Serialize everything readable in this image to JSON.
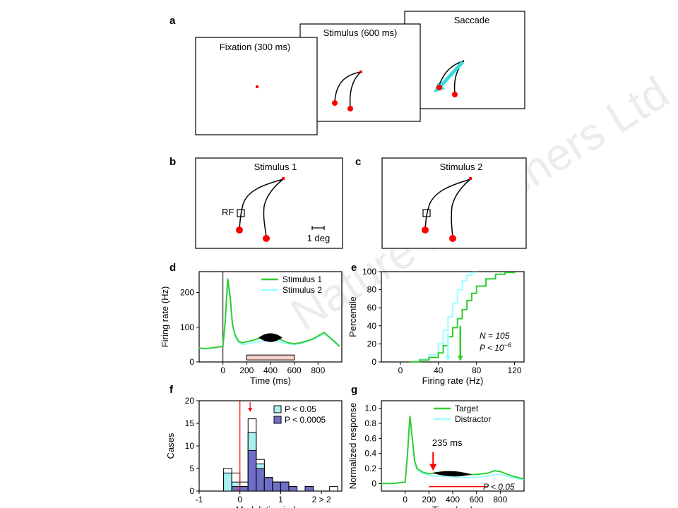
{
  "watermark": "Nature Publishers Ltd",
  "colors": {
    "green": "#33cc33",
    "cyan": "#99ffff",
    "red": "#ff0000",
    "purple": "#6f6fc8",
    "lightcyan": "#aaf0f0",
    "pinkbar": "#f5d0c8"
  },
  "panel_a": {
    "letter": "a",
    "screens": [
      {
        "label": "Fixation (300 ms)"
      },
      {
        "label": "Stimulus (600 ms)"
      },
      {
        "label": "Saccade"
      }
    ]
  },
  "panel_b": {
    "letter": "b",
    "title": "Stimulus 1",
    "rf_label": "RF",
    "scale_label": "1 deg"
  },
  "panel_c": {
    "letter": "c",
    "title": "Stimulus 2"
  },
  "chart_data": [
    {
      "panel": "d",
      "type": "line",
      "xlabel": "Time (ms)",
      "ylabel": "Firing rate (Hz)",
      "xlim": [
        -200,
        1000
      ],
      "ylim": [
        0,
        260
      ],
      "xticks": [
        0,
        200,
        400,
        600,
        800
      ],
      "yticks": [
        0,
        100,
        200
      ],
      "legend": "top-right",
      "series": [
        {
          "name": "Stimulus 1",
          "color": "#33cc33",
          "x": [
            -200,
            -150,
            -100,
            -50,
            0,
            20,
            40,
            60,
            80,
            100,
            130,
            160,
            200,
            250,
            300,
            350,
            400,
            450,
            500,
            550,
            600,
            650,
            700,
            750,
            800,
            850,
            900,
            950,
            980
          ],
          "y": [
            40,
            38,
            40,
            42,
            45,
            120,
            240,
            190,
            110,
            80,
            60,
            55,
            58,
            62,
            68,
            72,
            75,
            70,
            62,
            55,
            52,
            55,
            60,
            65,
            75,
            85,
            70,
            55,
            45
          ]
        },
        {
          "name": "Stimulus 2",
          "color": "#99ffff",
          "x": [
            -200,
            -150,
            -100,
            -50,
            0,
            20,
            40,
            60,
            80,
            100,
            130,
            160,
            200,
            250,
            300,
            350,
            400,
            450,
            500,
            550,
            600,
            650,
            700,
            750,
            800,
            850,
            900,
            950,
            980
          ],
          "y": [
            40,
            38,
            40,
            42,
            45,
            115,
            230,
            180,
            105,
            75,
            58,
            50,
            52,
            55,
            58,
            60,
            62,
            60,
            55,
            52,
            50,
            53,
            58,
            63,
            72,
            82,
            68,
            53,
            44
          ]
        }
      ],
      "analysis_window": [
        200,
        600
      ]
    },
    {
      "panel": "e",
      "type": "line",
      "xlabel": "Firing rate (Hz)",
      "ylabel": "Percentile",
      "xlim": [
        -20,
        130
      ],
      "ylim": [
        0,
        100
      ],
      "xticks": [
        0,
        40,
        80,
        120
      ],
      "yticks": [
        0,
        20,
        40,
        60,
        80,
        100
      ],
      "annotation_n": "N = 105",
      "annotation_p": "P < 10",
      "annotation_p_exp": "−6",
      "series": [
        {
          "name": "Stimulus 1",
          "color": "#33cc33",
          "x": [
            10,
            20,
            30,
            40,
            45,
            50,
            55,
            60,
            65,
            70,
            75,
            80,
            90,
            100,
            110,
            120
          ],
          "y": [
            0,
            2,
            5,
            10,
            18,
            28,
            38,
            48,
            58,
            68,
            76,
            84,
            92,
            97,
            99,
            100
          ],
          "median": 63
        },
        {
          "name": "Stimulus 2",
          "color": "#99ffff",
          "x": [
            10,
            20,
            30,
            40,
            45,
            50,
            55,
            60,
            65,
            70,
            75,
            80
          ],
          "y": [
            0,
            3,
            8,
            20,
            35,
            50,
            65,
            80,
            90,
            96,
            99,
            100
          ],
          "median": 50
        }
      ]
    },
    {
      "panel": "f",
      "type": "bar",
      "xlabel": "Modulation index",
      "ylabel": "Cases",
      "xlim": [
        -1,
        2.5
      ],
      "ylim": [
        0,
        20
      ],
      "xticks": [
        "-1",
        "0",
        "1",
        "2 > 2"
      ],
      "yticks": [
        0,
        5,
        10,
        15,
        20
      ],
      "legend_entries": [
        {
          "label": "P < 0.05",
          "color": "#aaf0f0"
        },
        {
          "label": "P < 0.0005",
          "color": "#6f6fc8"
        }
      ],
      "bins": [
        -0.4,
        -0.2,
        0,
        0.2,
        0.4,
        0.6,
        0.8,
        1.0,
        1.2,
        1.4,
        1.6,
        2.2
      ],
      "total": [
        5,
        4,
        2,
        16,
        7,
        3,
        2,
        2,
        1,
        0,
        1,
        1
      ],
      "p05": [
        4,
        2,
        1,
        13,
        6,
        3,
        2,
        2,
        1,
        0,
        1,
        0
      ],
      "p0005": [
        0,
        1,
        1,
        9,
        5,
        3,
        2,
        2,
        1,
        0,
        1,
        0
      ],
      "median_marker": 0.25
    },
    {
      "panel": "g",
      "type": "line",
      "xlabel": "Time (ms)",
      "ylabel": "Normalized response",
      "xlim": [
        -200,
        1000
      ],
      "ylim": [
        -0.1,
        1.1
      ],
      "xticks": [
        0,
        200,
        400,
        600,
        800
      ],
      "yticks": [
        0,
        0.2,
        0.4,
        0.6,
        0.8,
        1.0
      ],
      "annotation_time": "235 ms",
      "annotation_p": "P < 0.05",
      "series": [
        {
          "name": "Target",
          "color": "#33cc33",
          "x": [
            -200,
            -100,
            0,
            20,
            40,
            60,
            80,
            100,
            150,
            200,
            250,
            300,
            400,
            500,
            600,
            700,
            750,
            800,
            900,
            1000
          ],
          "y": [
            0.0,
            0.0,
            0.02,
            0.4,
            0.9,
            0.6,
            0.3,
            0.2,
            0.15,
            0.13,
            0.14,
            0.15,
            0.14,
            0.12,
            0.12,
            0.14,
            0.17,
            0.16,
            0.1,
            0.06
          ]
        },
        {
          "name": "Distractor",
          "color": "#99ffff",
          "x": [
            -200,
            -100,
            0,
            20,
            40,
            60,
            80,
            100,
            150,
            200,
            250,
            300,
            400,
            500,
            600,
            700,
            750,
            800,
            900,
            1000
          ],
          "y": [
            0.0,
            0.0,
            0.02,
            0.38,
            0.88,
            0.58,
            0.28,
            0.18,
            0.13,
            0.11,
            0.1,
            0.1,
            0.09,
            0.08,
            0.08,
            0.1,
            0.12,
            0.12,
            0.08,
            0.05
          ]
        }
      ],
      "onset_marker": 235,
      "significance_span": [
        200,
        700
      ]
    }
  ]
}
